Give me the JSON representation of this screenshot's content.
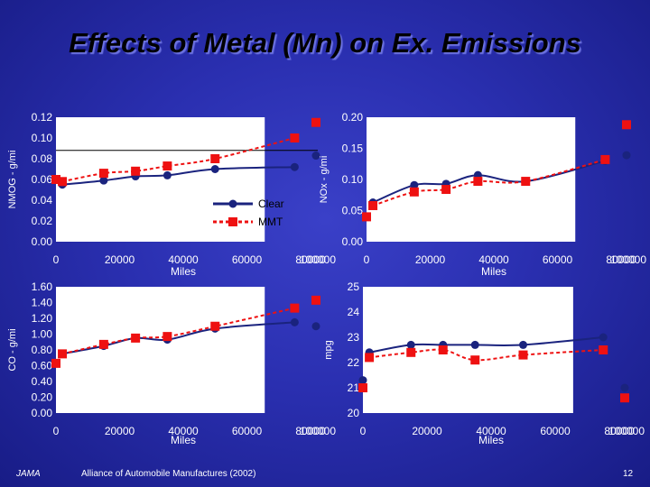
{
  "title": "Effects of Metal (Mn) on Ex. Emissions",
  "footer": {
    "left": "JAMA",
    "center": "Alliance of Automobile Manufactures (2002)",
    "page": "12"
  },
  "colors": {
    "clear": "#1a237e",
    "mmt": "#ee1111",
    "plot_bg": "#ffffff",
    "axis_text": "#ffffff"
  },
  "chart_data": [
    {
      "id": "nmog",
      "type": "line",
      "title": "",
      "xlabel": "Miles",
      "ylabel": "NMOG - g/mi",
      "xlim": [
        0,
        100000
      ],
      "ylim": [
        0,
        0.12
      ],
      "xticks": [
        "0",
        "20000",
        "40000",
        "60000",
        "80000",
        "100000"
      ],
      "yticks": [
        "0.00",
        "0.02",
        "0.04",
        "0.06",
        "0.08",
        "0.10",
        "0.12"
      ],
      "grid": false,
      "reference_line": 0.088,
      "legend": {
        "position": "bottom-right",
        "entries": [
          "Clear",
          "MMT"
        ]
      },
      "series": [
        {
          "name": "Clear",
          "x": [
            0,
            2000,
            15000,
            25000,
            35000,
            50000,
            75000,
            100000
          ],
          "y": [
            0.06,
            0.055,
            0.059,
            0.063,
            0.064,
            0.07,
            0.072,
            0.083
          ]
        },
        {
          "name": "MMT",
          "x": [
            0,
            2000,
            15000,
            25000,
            35000,
            50000,
            75000,
            100000
          ],
          "y": [
            0.06,
            0.058,
            0.066,
            0.068,
            0.073,
            0.08,
            0.1,
            0.115
          ]
        }
      ]
    },
    {
      "id": "nox",
      "type": "line",
      "title": "",
      "xlabel": "Miles",
      "ylabel": "NOx - g/mi",
      "xlim": [
        0,
        100000
      ],
      "ylim": [
        0,
        0.2
      ],
      "xticks": [
        "0",
        "20000",
        "40000",
        "60000",
        "80000",
        "100000"
      ],
      "yticks": [
        "0.00",
        "0.05",
        "0.10",
        "0.15",
        "0.20"
      ],
      "grid": false,
      "series": [
        {
          "name": "Clear",
          "x": [
            0,
            2000,
            15000,
            25000,
            35000,
            50000,
            75000,
            100000
          ],
          "y": [
            0.04,
            0.063,
            0.091,
            0.093,
            0.107,
            0.097,
            0.13,
            0.139
          ]
        },
        {
          "name": "MMT",
          "x": [
            0,
            2000,
            15000,
            25000,
            35000,
            50000,
            75000,
            100000
          ],
          "y": [
            0.04,
            0.058,
            0.08,
            0.084,
            0.097,
            0.097,
            0.132,
            0.188
          ]
        }
      ]
    },
    {
      "id": "co",
      "type": "line",
      "title": "",
      "xlabel": "Miles",
      "ylabel": "CO - g/mi",
      "xlim": [
        0,
        100000
      ],
      "ylim": [
        0,
        1.6
      ],
      "xticks": [
        "0",
        "20000",
        "40000",
        "60000",
        "80000",
        "100000"
      ],
      "yticks": [
        "0.00",
        "0.20",
        "0.40",
        "0.60",
        "0.80",
        "1.00",
        "1.20",
        "1.40",
        "1.60"
      ],
      "grid": false,
      "series": [
        {
          "name": "Clear",
          "x": [
            0,
            2000,
            15000,
            25000,
            35000,
            50000,
            75000,
            100000
          ],
          "y": [
            0.63,
            0.75,
            0.85,
            0.95,
            0.93,
            1.07,
            1.15,
            1.1
          ]
        },
        {
          "name": "MMT",
          "x": [
            0,
            2000,
            15000,
            25000,
            35000,
            50000,
            75000,
            100000
          ],
          "y": [
            0.63,
            0.75,
            0.87,
            0.95,
            0.97,
            1.1,
            1.33,
            1.43
          ]
        }
      ]
    },
    {
      "id": "mpg",
      "type": "line",
      "title": "",
      "xlabel": "Miles",
      "ylabel": "mpg",
      "xlim": [
        0,
        100000
      ],
      "ylim": [
        20,
        25
      ],
      "xticks": [
        "0",
        "20000",
        "40000",
        "60000",
        "80000",
        "100000"
      ],
      "yticks": [
        "20",
        "21",
        "22",
        "23",
        "24",
        "25"
      ],
      "grid": false,
      "series": [
        {
          "name": "Clear",
          "x": [
            0,
            2000,
            15000,
            25000,
            35000,
            50000,
            75000,
            100000
          ],
          "y": [
            21.3,
            22.4,
            22.7,
            22.7,
            22.7,
            22.7,
            23.0,
            21.0
          ]
        },
        {
          "name": "MMT",
          "x": [
            0,
            2000,
            15000,
            25000,
            35000,
            50000,
            75000,
            100000
          ],
          "y": [
            21.0,
            22.2,
            22.4,
            22.5,
            22.1,
            22.3,
            22.5,
            20.6
          ]
        }
      ]
    }
  ]
}
